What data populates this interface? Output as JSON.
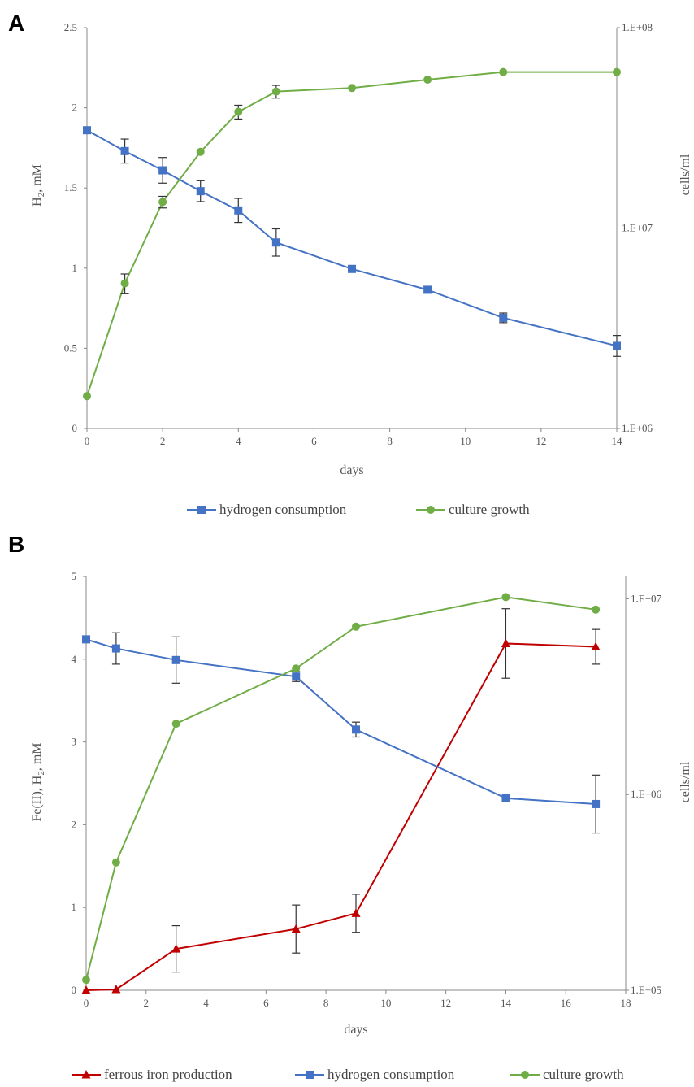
{
  "colors": {
    "hydrogen": "#4472C4",
    "growth": "#70AD47",
    "iron": "#C00000",
    "axis": "#888888",
    "errorbar": "#333333"
  },
  "chart_data": [
    {
      "panel": "A",
      "type": "line",
      "xlabel": "days",
      "ylabel": "H2, mM",
      "ylabel_main": "H",
      "ylabel_sub": "2",
      "ylabel_rest": ", mM",
      "y2label": "cells/ml",
      "xlim": [
        0,
        14
      ],
      "xticks": [
        0,
        2,
        4,
        6,
        8,
        10,
        12,
        14
      ],
      "ylim": [
        0,
        2.5
      ],
      "yticks": [
        0,
        0.5,
        1,
        1.5,
        2,
        2.5
      ],
      "ytick_labels": [
        "0",
        "0.5",
        "1",
        "1.5",
        "2",
        "2.5"
      ],
      "y2lim": [
        1000000,
        100000000
      ],
      "y2scale": "log",
      "y2ticks": [
        1000000,
        10000000,
        100000000
      ],
      "y2tick_labels": [
        "1.E+06",
        "1.E+07",
        "1.E+08"
      ],
      "series": [
        {
          "name": "hydrogen consumption",
          "axis": "left",
          "marker": "square",
          "color": "#4472C4",
          "x": [
            0,
            1,
            2,
            3,
            4,
            5,
            7,
            9,
            11,
            14
          ],
          "values": [
            1.86,
            1.73,
            1.61,
            1.48,
            1.36,
            1.16,
            0.995,
            0.865,
            0.69,
            0.515
          ],
          "errors": [
            0,
            0.075,
            0.08,
            0.065,
            0.075,
            0.085,
            0,
            0.02,
            0.03,
            0.065
          ]
        },
        {
          "name": "culture growth",
          "axis": "right",
          "marker": "circle",
          "color": "#70AD47",
          "x": [
            0,
            1,
            2,
            3,
            4,
            5,
            7,
            9,
            11,
            14
          ],
          "values": [
            1450000,
            5300000,
            13500000,
            24000000,
            38000000,
            48000000,
            50000000,
            55000000,
            60000000,
            60000000
          ],
          "errors": [
            0,
            600000,
            900000,
            0,
            3000000,
            3500000,
            0,
            0,
            0,
            0
          ]
        }
      ],
      "legend": [
        "hydrogen consumption",
        "culture growth"
      ]
    },
    {
      "panel": "B",
      "type": "line",
      "xlabel": "days",
      "ylabel": "Fe(II), H2, mM",
      "ylabel_main": "Fe(II), H",
      "ylabel_sub": "2",
      "ylabel_rest": ", mM",
      "y2label": "cells/ml",
      "xlim": [
        0,
        18
      ],
      "xticks": [
        0,
        2,
        4,
        6,
        8,
        10,
        12,
        14,
        16,
        18
      ],
      "ylim": [
        0,
        5
      ],
      "yticks": [
        0,
        1,
        2,
        3,
        4,
        5
      ],
      "ytick_labels": [
        "0",
        "1",
        "2",
        "3",
        "4",
        "5"
      ],
      "y2lim": [
        100000,
        13000000
      ],
      "y2scale": "log",
      "y2ticks": [
        100000,
        1000000,
        10000000
      ],
      "y2tick_labels": [
        "1.E+05",
        "1.E+06",
        "1.E+07"
      ],
      "series": [
        {
          "name": "ferrous iron production",
          "axis": "left",
          "marker": "triangle",
          "color": "#C00000",
          "x": [
            0,
            1,
            3,
            7,
            9,
            14,
            17
          ],
          "values": [
            0,
            0.01,
            0.5,
            0.74,
            0.93,
            4.19,
            4.15
          ],
          "errors": [
            0,
            0,
            0.28,
            0.29,
            0.23,
            0.42,
            0.21
          ]
        },
        {
          "name": "hydrogen consumption",
          "axis": "left",
          "marker": "square",
          "color": "#4472C4",
          "x": [
            0,
            1,
            3,
            7,
            9,
            14,
            17
          ],
          "values": [
            4.24,
            4.13,
            3.99,
            3.79,
            3.15,
            2.32,
            2.25
          ],
          "errors": [
            0,
            0.19,
            0.28,
            0.06,
            0.09,
            0,
            0.35
          ]
        },
        {
          "name": "culture growth",
          "axis": "right",
          "marker": "circle",
          "color": "#70AD47",
          "x": [
            0,
            1,
            3,
            7,
            9,
            14,
            17
          ],
          "values": [
            113000,
            450000,
            2300000,
            4400000,
            7200000,
            10200000,
            8800000
          ],
          "errors": [
            0,
            0,
            0,
            0,
            0,
            0,
            0
          ]
        }
      ],
      "legend": [
        "ferrous iron production",
        "hydrogen consumption",
        "culture growth"
      ]
    }
  ]
}
